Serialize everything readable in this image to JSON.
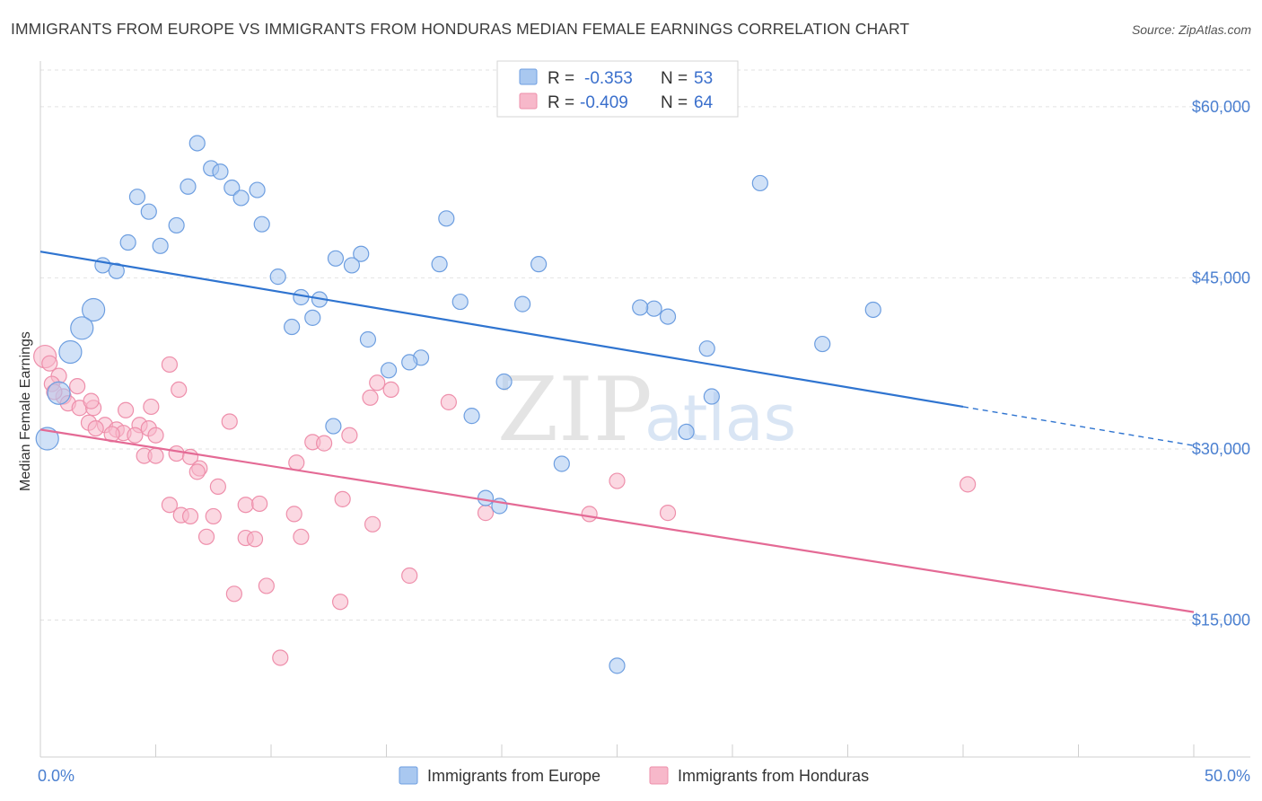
{
  "title": "IMMIGRANTS FROM EUROPE VS IMMIGRANTS FROM HONDURAS MEDIAN FEMALE EARNINGS CORRELATION CHART",
  "source": "Source: ZipAtlas.com",
  "watermark": {
    "zip": "ZIP",
    "atlas": "atlas"
  },
  "colors": {
    "europe_fill": "#a9c8f0",
    "europe_stroke": "#6d9ee0",
    "europe_line": "#2f74d0",
    "honduras_fill": "#f7b8ca",
    "honduras_stroke": "#ee8fab",
    "honduras_line": "#e46a95",
    "tick_label": "#4a7fd0",
    "grid": "#e2e2e2"
  },
  "legend": {
    "r_label": "R =",
    "n_label": "N =",
    "europe": {
      "r": "-0.353",
      "n": "53"
    },
    "honduras": {
      "r": "-0.409",
      "n": "64"
    }
  },
  "chart_data": {
    "type": "scatter",
    "title": "IMMIGRANTS FROM EUROPE VS IMMIGRANTS FROM HONDURAS MEDIAN FEMALE EARNINGS CORRELATION CHART",
    "xlabel": "",
    "ylabel": "Median Female Earnings",
    "xlim": [
      0,
      50
    ],
    "ylim": [
      3000,
      64000
    ],
    "x_tick_labels": [
      "0.0%",
      "50.0%"
    ],
    "y_ticks": [
      15000,
      30000,
      45000,
      60000
    ],
    "y_tick_labels": [
      "$15,000",
      "$30,000",
      "$45,000",
      "$60,000"
    ],
    "grid": "horizontal dashed",
    "legend_position": "top-center",
    "series": [
      {
        "name": "Immigrants from Europe",
        "trend": {
          "x0": 0,
          "y0": 47300,
          "x1": 40,
          "y1": 33700,
          "dashed_to_x": 50,
          "dashed_to_y": 30300
        },
        "points": [
          [
            6.8,
            56800,
            1
          ],
          [
            7.4,
            54600,
            1
          ],
          [
            7.8,
            54300,
            1
          ],
          [
            6.4,
            53000,
            1
          ],
          [
            8.3,
            52900,
            1
          ],
          [
            9.4,
            52700,
            1
          ],
          [
            4.2,
            52100,
            1
          ],
          [
            8.7,
            52000,
            1
          ],
          [
            4.7,
            50800,
            1
          ],
          [
            5.9,
            49600,
            1
          ],
          [
            9.6,
            49700,
            1
          ],
          [
            17.6,
            50200,
            1
          ],
          [
            3.8,
            48100,
            1
          ],
          [
            5.2,
            47800,
            1
          ],
          [
            13.9,
            47100,
            1
          ],
          [
            12.8,
            46700,
            1
          ],
          [
            2.7,
            46100,
            1
          ],
          [
            3.3,
            45600,
            1
          ],
          [
            13.5,
            46100,
            1
          ],
          [
            17.3,
            46200,
            1
          ],
          [
            21.6,
            46200,
            1
          ],
          [
            10.3,
            45100,
            1
          ],
          [
            11.3,
            43300,
            1
          ],
          [
            12.1,
            43100,
            1
          ],
          [
            18.2,
            42900,
            1
          ],
          [
            20.9,
            42700,
            1
          ],
          [
            26.6,
            42300,
            1
          ],
          [
            27.2,
            41600,
            1
          ],
          [
            36.1,
            42200,
            1
          ],
          [
            11.8,
            41500,
            1
          ],
          [
            10.9,
            40700,
            1
          ],
          [
            2.3,
            42200,
            2
          ],
          [
            1.8,
            40600,
            2
          ],
          [
            14.2,
            39600,
            1
          ],
          [
            28.9,
            38800,
            1
          ],
          [
            33.9,
            39200,
            1
          ],
          [
            1.3,
            38500,
            2
          ],
          [
            16.5,
            38000,
            1
          ],
          [
            16.0,
            37600,
            1
          ],
          [
            15.1,
            36900,
            1
          ],
          [
            20.1,
            35900,
            1
          ],
          [
            29.1,
            34600,
            1
          ],
          [
            0.8,
            34900,
            2
          ],
          [
            18.7,
            32900,
            1
          ],
          [
            12.7,
            32000,
            1
          ],
          [
            28.0,
            31500,
            1
          ],
          [
            0.3,
            30900,
            2
          ],
          [
            22.6,
            28700,
            1
          ],
          [
            19.3,
            25700,
            1
          ],
          [
            19.9,
            25000,
            1
          ],
          [
            31.2,
            53300,
            1
          ],
          [
            26.0,
            42400,
            1
          ],
          [
            25.0,
            11000,
            1
          ]
        ]
      },
      {
        "name": "Immigrants from Honduras",
        "trend": {
          "x0": 0,
          "y0": 31700,
          "x1": 50,
          "y1": 15700
        },
        "points": [
          [
            0.2,
            38100,
            2
          ],
          [
            0.4,
            37500,
            1
          ],
          [
            0.8,
            36400,
            1
          ],
          [
            0.5,
            35700,
            1
          ],
          [
            1.6,
            35500,
            1
          ],
          [
            5.6,
            37400,
            1
          ],
          [
            6.0,
            35200,
            1
          ],
          [
            14.6,
            35800,
            1
          ],
          [
            15.2,
            35200,
            1
          ],
          [
            14.3,
            34500,
            1
          ],
          [
            1.0,
            34600,
            1
          ],
          [
            1.2,
            34000,
            1
          ],
          [
            1.7,
            33600,
            1
          ],
          [
            2.3,
            33600,
            1
          ],
          [
            3.7,
            33400,
            1
          ],
          [
            4.8,
            33700,
            1
          ],
          [
            17.7,
            34100,
            1
          ],
          [
            2.1,
            32300,
            1
          ],
          [
            2.8,
            32100,
            1
          ],
          [
            3.3,
            31700,
            1
          ],
          [
            3.6,
            31400,
            1
          ],
          [
            4.3,
            32100,
            1
          ],
          [
            4.7,
            31800,
            1
          ],
          [
            8.2,
            32400,
            1
          ],
          [
            2.4,
            31800,
            1
          ],
          [
            3.1,
            31300,
            1
          ],
          [
            4.1,
            31200,
            1
          ],
          [
            5.0,
            31200,
            1
          ],
          [
            13.4,
            31200,
            1
          ],
          [
            11.8,
            30600,
            1
          ],
          [
            12.3,
            30500,
            1
          ],
          [
            4.5,
            29400,
            1
          ],
          [
            5.0,
            29400,
            1
          ],
          [
            5.9,
            29600,
            1
          ],
          [
            6.5,
            29300,
            1
          ],
          [
            11.1,
            28800,
            1
          ],
          [
            6.9,
            28300,
            1
          ],
          [
            6.8,
            28000,
            1
          ],
          [
            7.7,
            26700,
            1
          ],
          [
            25.0,
            27200,
            1
          ],
          [
            40.2,
            26900,
            1
          ],
          [
            5.6,
            25100,
            1
          ],
          [
            8.9,
            25100,
            1
          ],
          [
            9.5,
            25200,
            1
          ],
          [
            13.1,
            25600,
            1
          ],
          [
            6.1,
            24200,
            1
          ],
          [
            6.5,
            24100,
            1
          ],
          [
            7.5,
            24100,
            1
          ],
          [
            11.0,
            24300,
            1
          ],
          [
            19.3,
            24400,
            1
          ],
          [
            23.8,
            24300,
            1
          ],
          [
            27.2,
            24400,
            1
          ],
          [
            14.4,
            23400,
            1
          ],
          [
            7.2,
            22300,
            1
          ],
          [
            8.9,
            22200,
            1
          ],
          [
            9.3,
            22100,
            1
          ],
          [
            11.3,
            22300,
            1
          ],
          [
            16.0,
            18900,
            1
          ],
          [
            9.8,
            18000,
            1
          ],
          [
            8.4,
            17300,
            1
          ],
          [
            13.0,
            16600,
            1
          ],
          [
            10.4,
            11700,
            1
          ],
          [
            2.2,
            34200,
            1
          ],
          [
            0.6,
            35000,
            1
          ]
        ]
      }
    ]
  }
}
